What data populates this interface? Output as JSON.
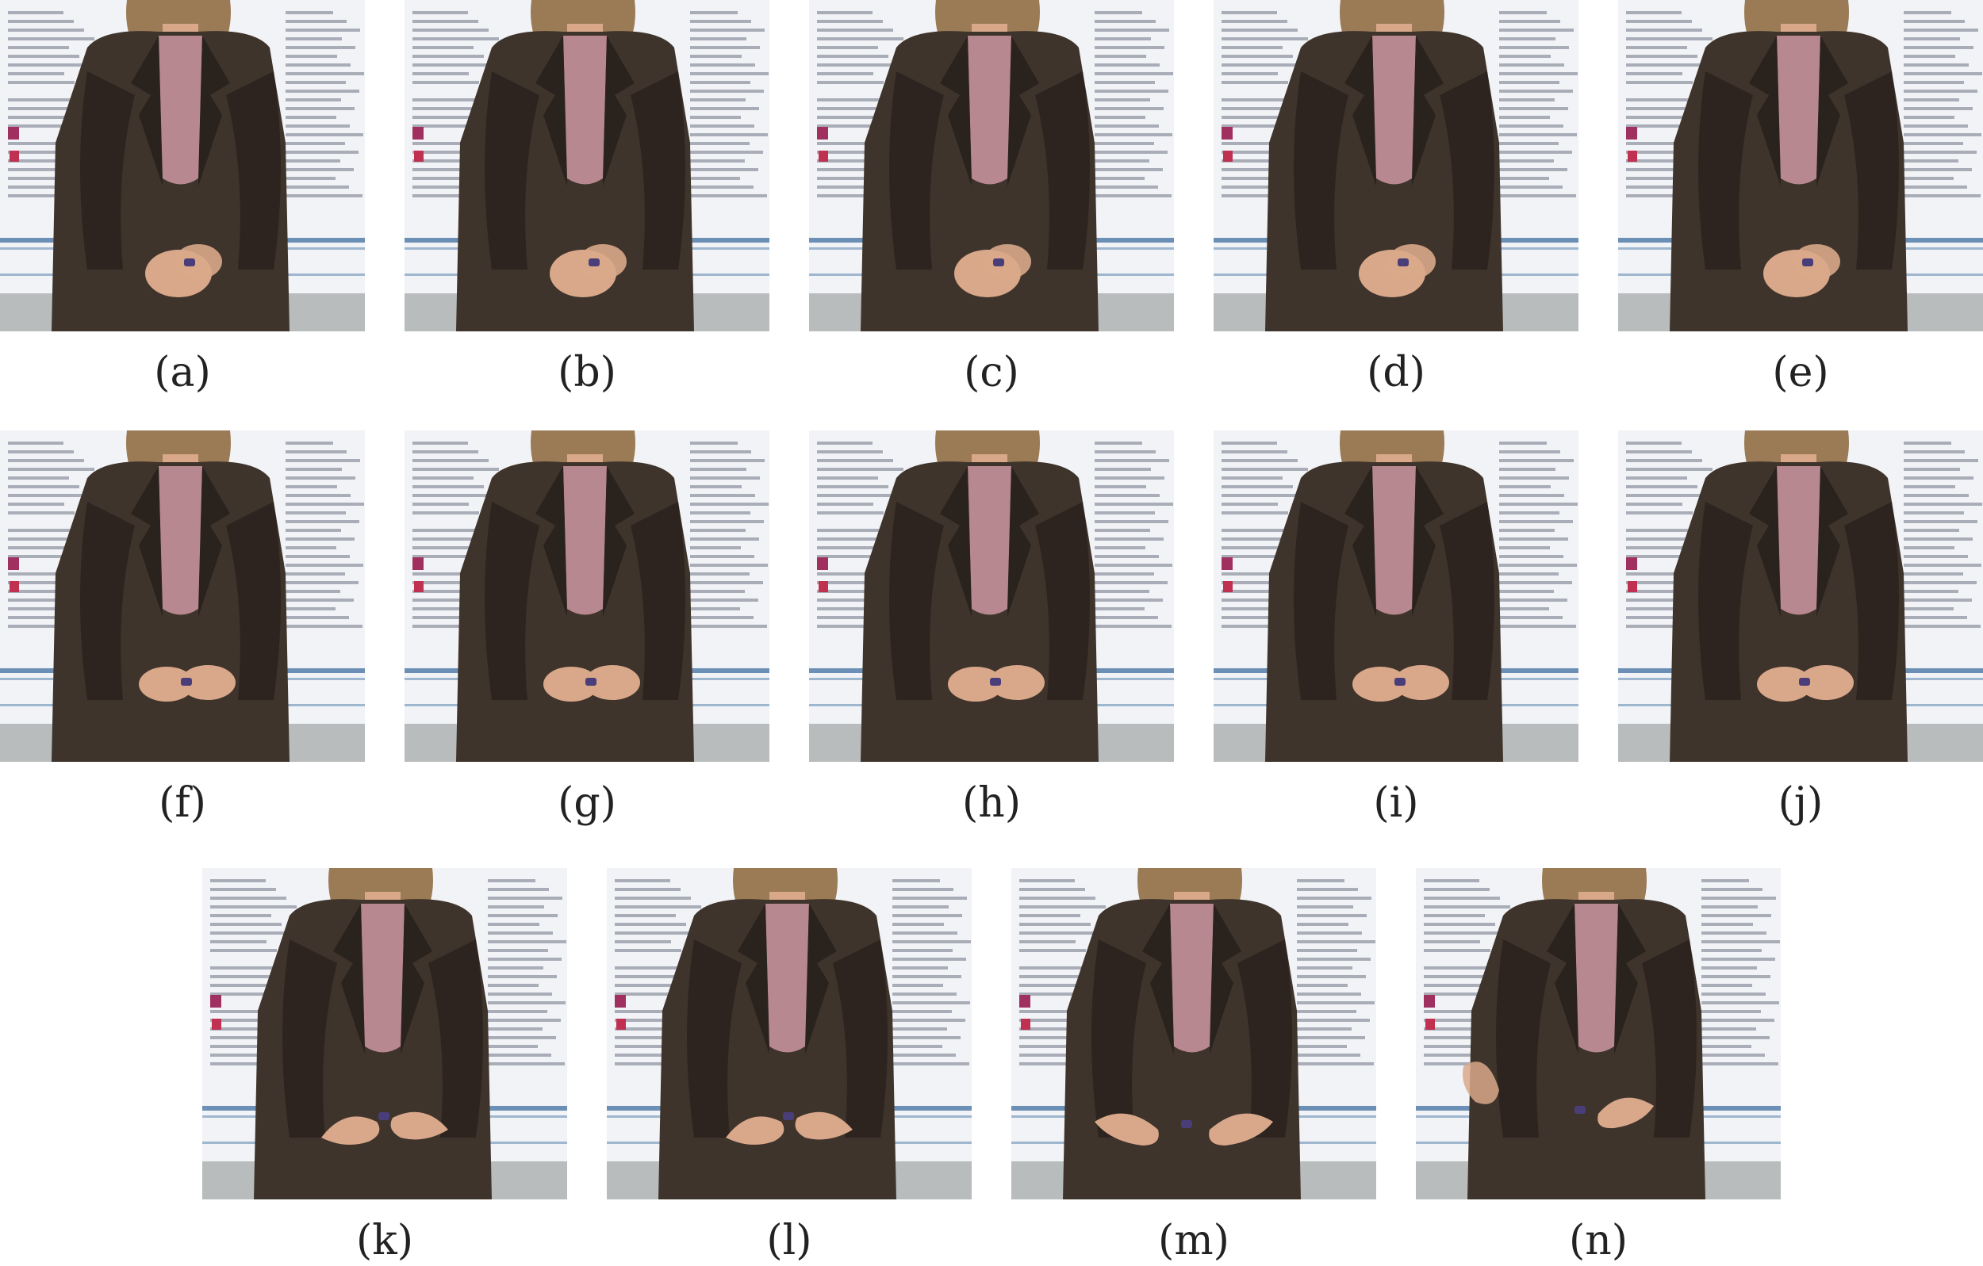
{
  "figure": {
    "panels": [
      {
        "label": "(a)",
        "hands": "clasped",
        "offset": 0
      },
      {
        "label": "(b)",
        "hands": "clasped",
        "offset": 0
      },
      {
        "label": "(c)",
        "hands": "clasped",
        "offset": 0
      },
      {
        "label": "(d)",
        "hands": "clasped",
        "offset": 0
      },
      {
        "label": "(e)",
        "hands": "clasped",
        "offset": 0
      },
      {
        "label": "(f)",
        "hands": "together",
        "offset": 0
      },
      {
        "label": "(g)",
        "hands": "together",
        "offset": 0
      },
      {
        "label": "(h)",
        "hands": "together",
        "offset": 0
      },
      {
        "label": "(i)",
        "hands": "together",
        "offset": 0
      },
      {
        "label": "(j)",
        "hands": "together",
        "offset": 0
      },
      {
        "label": "(k)",
        "hands": "open",
        "offset": 0
      },
      {
        "label": "(l)",
        "hands": "open",
        "offset": 0
      },
      {
        "label": "(m)",
        "hands": "spread",
        "offset": 0
      },
      {
        "label": "(n)",
        "hands": "raised",
        "offset": 0
      }
    ],
    "colors": {
      "coat": "#3f342c",
      "coat_dark": "#2a221d",
      "shirt": "#b88891",
      "hair": "#9a7b55",
      "skin": "#d9a88a",
      "poster": "#f2f3f6",
      "poster_text": "#8a8f9c",
      "stripe_blue": "#6b8fb5",
      "floor": "#b9bcbc"
    }
  }
}
